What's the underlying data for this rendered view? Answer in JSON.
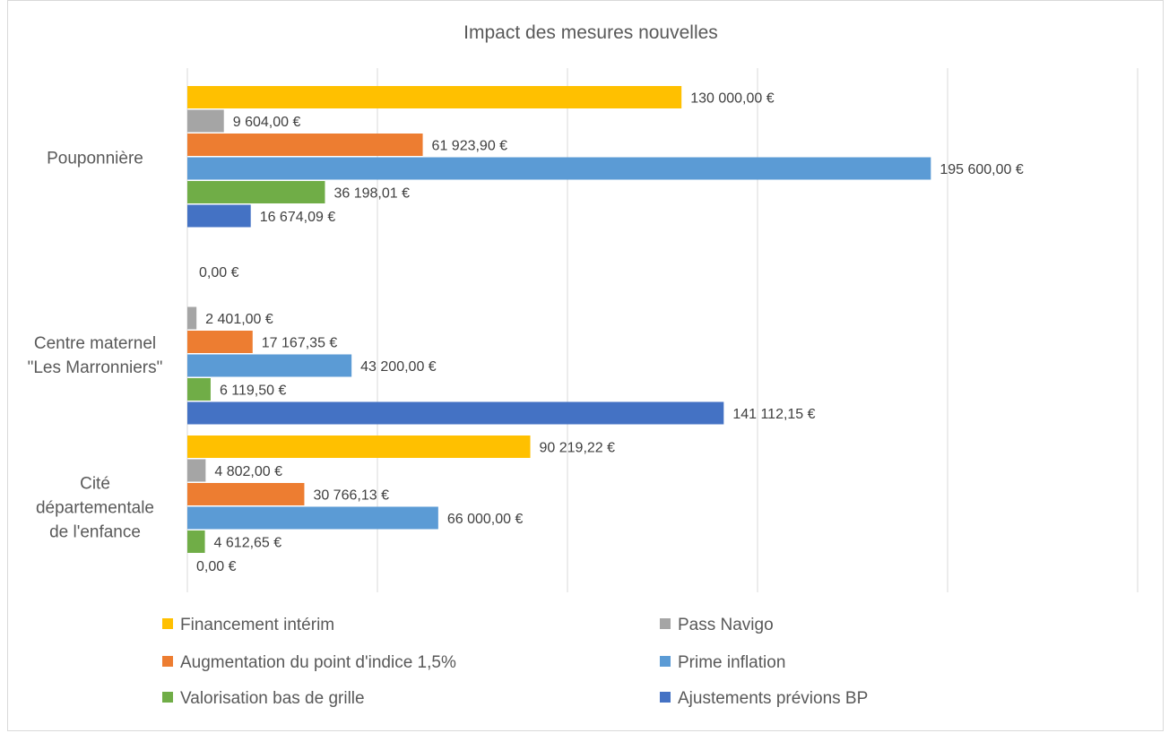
{
  "chart_data": {
    "type": "bar",
    "orientation": "horizontal",
    "title": "Impact des mesures nouvelles",
    "categories": [
      "Pouponnière",
      "Centre maternel \"Les Marronniers\"",
      "Cité départementale de l'enfance"
    ],
    "category_lines": [
      [
        "Pouponnière"
      ],
      [
        "Centre maternel",
        "\"Les Marronniers\""
      ],
      [
        "Cité",
        "départementale",
        "de l'enfance"
      ]
    ],
    "series": [
      {
        "name": "Financement intérim",
        "color": "#FFC000",
        "values": [
          130000.0,
          null,
          90219.22
        ],
        "labels": [
          "130 000,00 €",
          "",
          "90 219,22 €"
        ]
      },
      {
        "name": "Pass Navigo",
        "color": "#A5A5A5",
        "values": [
          9604.0,
          2401.0,
          4802.0
        ],
        "labels": [
          "9 604,00 €",
          "2 401,00 €",
          "4 802,00 €"
        ]
      },
      {
        "name": "Augmentation du point d'indice 1,5%",
        "color": "#ED7D31",
        "values": [
          61923.9,
          17167.35,
          30766.13
        ],
        "labels": [
          "61 923,90 €",
          "17 167,35 €",
          "30 766,13 €"
        ]
      },
      {
        "name": "Prime inflation",
        "color": "#5B9BD5",
        "values": [
          195600.0,
          43200.0,
          66000.0
        ],
        "labels": [
          "195 600,00 €",
          "43 200,00 €",
          "66 000,00 €"
        ]
      },
      {
        "name": "Valorisation bas de grille",
        "color": "#70AD47",
        "values": [
          36198.01,
          6119.5,
          4612.65
        ],
        "labels": [
          "36 198,01 €",
          "6 119,50 €",
          "4 612,65 €"
        ]
      },
      {
        "name": "Ajustements prévions BP",
        "color": "#4472C4",
        "values": [
          16674.09,
          141112.15,
          0
        ],
        "labels": [
          "16 674,09 €",
          "141 112,15 €",
          "0,00 €"
        ]
      }
    ],
    "extra_labels": [
      {
        "category_index": 1,
        "series_index": 0,
        "label": "0,00 €"
      }
    ],
    "xlim": [
      0,
      250000
    ],
    "grid": true,
    "legend": "bottom",
    "xlabel": "",
    "ylabel": ""
  }
}
